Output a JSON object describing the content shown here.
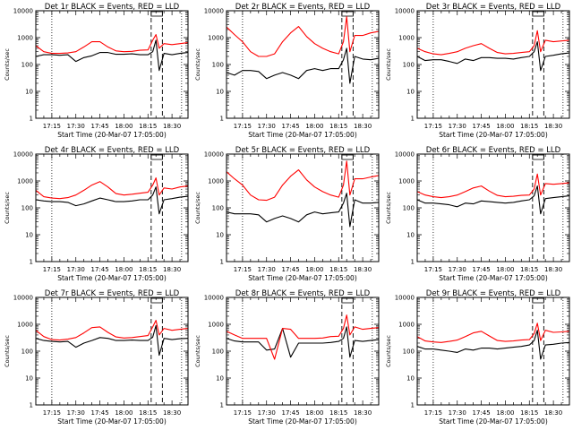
{
  "figure": {
    "common": {
      "xlabel": "Start Time (20-Mar-07 17:05:00)",
      "ylabel": "Counts/sec",
      "x_tick_labels": [
        "17:15",
        "17:30",
        "17:45",
        "18:00",
        "18:15",
        "18:30"
      ],
      "y_tick_labels": [
        "1",
        "10",
        "100",
        "1000",
        "10000"
      ]
    }
  },
  "chart_data": [
    {
      "type": "line",
      "title": "Det 1r BLACK = Events, RED = LLD",
      "xlabel": "Start Time (20-Mar-07 17:05:00)",
      "ylabel": "Counts/sec",
      "yscale": "log",
      "xlim": [
        "17:05",
        "18:40"
      ],
      "ylim": [
        1,
        10000
      ],
      "x_ticks": [
        "17:15",
        "17:30",
        "17:45",
        "18:00",
        "18:15",
        "18:30"
      ],
      "y_ticks": [
        1,
        10,
        100,
        1000,
        10000
      ],
      "x": [
        "17:05",
        "17:10",
        "17:15",
        "17:20",
        "17:25",
        "17:30",
        "17:35",
        "17:40",
        "17:45",
        "17:50",
        "17:55",
        "18:00",
        "18:05",
        "18:10",
        "18:15",
        "18:18",
        "18:20",
        "18:22",
        "18:25",
        "18:30",
        "18:35",
        "18:40"
      ],
      "series": [
        {
          "name": "BLACK = Events",
          "color": "#000000",
          "values": [
            200,
            230,
            230,
            220,
            230,
            130,
            180,
            210,
            280,
            280,
            240,
            240,
            250,
            230,
            230,
            300,
            800,
            60,
            260,
            230,
            260,
            280
          ]
        },
        {
          "name": "RED = LLD",
          "color": "#ff0000",
          "values": [
            500,
            300,
            260,
            260,
            270,
            300,
            450,
            700,
            700,
            450,
            320,
            300,
            310,
            340,
            350,
            800,
            1300,
            400,
            600,
            550,
            600,
            650
          ]
        }
      ]
    },
    {
      "type": "line",
      "title": "Det 2r BLACK = Events, RED = LLD",
      "xlabel": "Start Time (20-Mar-07 17:05:00)",
      "ylabel": "Counts/sec",
      "yscale": "log",
      "xlim": [
        "17:05",
        "18:40"
      ],
      "ylim": [
        1,
        10000
      ],
      "x_ticks": [
        "17:15",
        "17:30",
        "17:45",
        "18:00",
        "18:15",
        "18:30"
      ],
      "y_ticks": [
        1,
        10,
        100,
        1000,
        10000
      ],
      "x": [
        "17:05",
        "17:10",
        "17:15",
        "17:20",
        "17:25",
        "17:30",
        "17:35",
        "17:40",
        "17:45",
        "17:50",
        "17:55",
        "18:00",
        "18:05",
        "18:10",
        "18:15",
        "18:18",
        "18:20",
        "18:22",
        "18:25",
        "18:30",
        "18:35",
        "18:40"
      ],
      "series": [
        {
          "name": "BLACK = Events",
          "color": "#000000",
          "values": [
            50,
            40,
            60,
            60,
            55,
            30,
            40,
            50,
            40,
            30,
            60,
            70,
            60,
            70,
            70,
            150,
            400,
            20,
            200,
            160,
            150,
            170
          ]
        },
        {
          "name": "RED = LLD",
          "color": "#ff0000",
          "values": [
            2500,
            1300,
            700,
            300,
            200,
            200,
            250,
            700,
            1500,
            2600,
            1100,
            600,
            400,
            300,
            250,
            700,
            6000,
            300,
            1200,
            1200,
            1500,
            1700
          ]
        }
      ]
    },
    {
      "type": "line",
      "title": "Det 3r BLACK = Events, RED = LLD",
      "xlabel": "Start Time (20-Mar-07 17:05:00)",
      "ylabel": "Counts/sec",
      "yscale": "log",
      "xlim": [
        "17:05",
        "18:40"
      ],
      "ylim": [
        1,
        10000
      ],
      "x_ticks": [
        "17:15",
        "17:30",
        "17:45",
        "18:00",
        "18:15",
        "18:30"
      ],
      "y_ticks": [
        1,
        10,
        100,
        1000,
        10000
      ],
      "x": [
        "17:05",
        "17:10",
        "17:15",
        "17:20",
        "17:25",
        "17:30",
        "17:35",
        "17:40",
        "17:45",
        "17:50",
        "17:55",
        "18:00",
        "18:05",
        "18:10",
        "18:15",
        "18:18",
        "18:20",
        "18:22",
        "18:25",
        "18:30",
        "18:35",
        "18:40"
      ],
      "series": [
        {
          "name": "BLACK = Events",
          "color": "#000000",
          "values": [
            200,
            140,
            150,
            150,
            130,
            110,
            160,
            140,
            180,
            180,
            170,
            170,
            160,
            180,
            200,
            300,
            700,
            60,
            200,
            220,
            250,
            270
          ]
        },
        {
          "name": "RED = LLD",
          "color": "#ff0000",
          "values": [
            400,
            300,
            250,
            230,
            260,
            300,
            400,
            500,
            600,
            400,
            280,
            250,
            260,
            280,
            300,
            500,
            1800,
            300,
            800,
            700,
            750,
            800
          ]
        }
      ]
    },
    {
      "type": "line",
      "title": "Det 4r BLACK = Events, RED = LLD",
      "xlabel": "Start Time (20-Mar-07 17:05:00)",
      "ylabel": "Counts/sec",
      "yscale": "log",
      "xlim": [
        "17:05",
        "18:40"
      ],
      "ylim": [
        1,
        10000
      ],
      "x_ticks": [
        "17:15",
        "17:30",
        "17:45",
        "18:00",
        "18:15",
        "18:30"
      ],
      "y_ticks": [
        1,
        10,
        100,
        1000,
        10000
      ],
      "x": [
        "17:05",
        "17:10",
        "17:15",
        "17:20",
        "17:25",
        "17:30",
        "17:35",
        "17:40",
        "17:45",
        "17:50",
        "17:55",
        "18:00",
        "18:05",
        "18:10",
        "18:15",
        "18:18",
        "18:20",
        "18:22",
        "18:25",
        "18:30",
        "18:35",
        "18:40"
      ],
      "series": [
        {
          "name": "BLACK = Events",
          "color": "#000000",
          "values": [
            200,
            180,
            170,
            170,
            160,
            120,
            140,
            180,
            230,
            200,
            170,
            170,
            180,
            200,
            200,
            300,
            600,
            60,
            200,
            220,
            250,
            270
          ]
        },
        {
          "name": "RED = LLD",
          "color": "#ff0000",
          "values": [
            450,
            260,
            230,
            220,
            240,
            300,
            450,
            700,
            950,
            600,
            340,
            300,
            320,
            350,
            380,
            700,
            1300,
            300,
            550,
            500,
            600,
            650
          ]
        }
      ]
    },
    {
      "type": "line",
      "title": "Det 5r BLACK = Events, RED = LLD",
      "xlabel": "Start Time (20-Mar-07 17:05:00)",
      "ylabel": "Counts/sec",
      "yscale": "log",
      "xlim": [
        "17:05",
        "18:40"
      ],
      "ylim": [
        1,
        10000
      ],
      "x_ticks": [
        "17:15",
        "17:30",
        "17:45",
        "18:00",
        "18:15",
        "18:30"
      ],
      "y_ticks": [
        1,
        10,
        100,
        1000,
        10000
      ],
      "x": [
        "17:05",
        "17:10",
        "17:15",
        "17:20",
        "17:25",
        "17:30",
        "17:35",
        "17:40",
        "17:45",
        "17:50",
        "17:55",
        "18:00",
        "18:05",
        "18:10",
        "18:15",
        "18:18",
        "18:20",
        "18:22",
        "18:25",
        "18:30",
        "18:35",
        "18:40"
      ],
      "series": [
        {
          "name": "BLACK = Events",
          "color": "#000000",
          "values": [
            70,
            60,
            60,
            60,
            55,
            30,
            40,
            50,
            40,
            30,
            55,
            70,
            60,
            65,
            70,
            150,
            350,
            20,
            200,
            150,
            150,
            160
          ]
        },
        {
          "name": "RED = LLD",
          "color": "#ff0000",
          "values": [
            2200,
            1200,
            700,
            300,
            200,
            190,
            250,
            700,
            1500,
            2600,
            1100,
            600,
            400,
            300,
            250,
            700,
            5500,
            300,
            1200,
            1200,
            1400,
            1600
          ]
        }
      ]
    },
    {
      "type": "line",
      "title": "Det 6r BLACK = Events, RED = LLD",
      "xlabel": "Start Time (20-Mar-07 17:05:00)",
      "ylabel": "Counts/sec",
      "yscale": "log",
      "xlim": [
        "17:05",
        "18:40"
      ],
      "ylim": [
        1,
        10000
      ],
      "x_ticks": [
        "17:15",
        "17:30",
        "17:45",
        "18:00",
        "18:15",
        "18:30"
      ],
      "y_ticks": [
        1,
        10,
        100,
        1000,
        10000
      ],
      "x": [
        "17:05",
        "17:10",
        "17:15",
        "17:20",
        "17:25",
        "17:30",
        "17:35",
        "17:40",
        "17:45",
        "17:50",
        "17:55",
        "18:00",
        "18:05",
        "18:10",
        "18:15",
        "18:18",
        "18:20",
        "18:22",
        "18:25",
        "18:30",
        "18:35",
        "18:40"
      ],
      "series": [
        {
          "name": "BLACK = Events",
          "color": "#000000",
          "values": [
            200,
            150,
            150,
            140,
            130,
            110,
            150,
            140,
            180,
            170,
            160,
            150,
            160,
            180,
            200,
            280,
            650,
            60,
            220,
            240,
            260,
            280
          ]
        },
        {
          "name": "RED = LLD",
          "color": "#ff0000",
          "values": [
            400,
            300,
            260,
            240,
            260,
            300,
            400,
            550,
            650,
            420,
            290,
            260,
            270,
            290,
            300,
            500,
            1800,
            300,
            800,
            750,
            800,
            850
          ]
        }
      ]
    },
    {
      "type": "line",
      "title": "Det 7r BLACK = Events, RED = LLD",
      "xlabel": "Start Time (20-Mar-07 17:05:00)",
      "ylabel": "Counts/sec",
      "yscale": "log",
      "xlim": [
        "17:05",
        "18:40"
      ],
      "ylim": [
        1,
        10000
      ],
      "x_ticks": [
        "17:15",
        "17:30",
        "17:45",
        "18:00",
        "18:15",
        "18:30"
      ],
      "y_ticks": [
        1,
        10,
        100,
        1000,
        10000
      ],
      "x": [
        "17:05",
        "17:10",
        "17:15",
        "17:20",
        "17:25",
        "17:30",
        "17:35",
        "17:40",
        "17:45",
        "17:50",
        "17:55",
        "18:00",
        "18:05",
        "18:10",
        "18:15",
        "18:18",
        "18:20",
        "18:22",
        "18:25",
        "18:30",
        "18:35",
        "18:40"
      ],
      "series": [
        {
          "name": "BLACK = Events",
          "color": "#000000",
          "values": [
            300,
            250,
            230,
            220,
            230,
            140,
            200,
            250,
            320,
            300,
            250,
            250,
            260,
            250,
            250,
            330,
            900,
            70,
            300,
            270,
            290,
            300
          ]
        },
        {
          "name": "RED = LLD",
          "color": "#ff0000",
          "values": [
            600,
            350,
            270,
            260,
            280,
            320,
            480,
            750,
            800,
            500,
            340,
            310,
            320,
            350,
            380,
            800,
            1400,
            400,
            700,
            600,
            650,
            700
          ]
        }
      ]
    },
    {
      "type": "line",
      "title": "Det 8r BLACK = Events, RED = LLD",
      "xlabel": "Start Time (20-Mar-07 17:05:00)",
      "ylabel": "Counts/sec",
      "yscale": "log",
      "xlim": [
        "17:05",
        "18:40"
      ],
      "ylim": [
        1,
        10000
      ],
      "x_ticks": [
        "17:15",
        "17:30",
        "17:45",
        "18:00",
        "18:15",
        "18:30"
      ],
      "y_ticks": [
        1,
        10,
        100,
        1000,
        10000
      ],
      "x": [
        "17:05",
        "17:10",
        "17:15",
        "17:20",
        "17:25",
        "17:30",
        "17:35",
        "17:40",
        "17:45",
        "17:50",
        "17:55",
        "18:00",
        "18:05",
        "18:10",
        "18:15",
        "18:18",
        "18:20",
        "18:22",
        "18:25",
        "18:30",
        "18:35",
        "18:40"
      ],
      "series": [
        {
          "name": "BLACK = Events",
          "color": "#000000",
          "values": [
            300,
            240,
            220,
            220,
            220,
            110,
            120,
            700,
            60,
            200,
            200,
            200,
            200,
            210,
            230,
            300,
            800,
            60,
            250,
            230,
            250,
            270
          ]
        },
        {
          "name": "RED = LLD",
          "color": "#ff0000",
          "values": [
            550,
            400,
            300,
            300,
            300,
            300,
            50,
            700,
            650,
            300,
            300,
            300,
            310,
            350,
            360,
            700,
            2200,
            400,
            800,
            650,
            700,
            750
          ]
        }
      ]
    },
    {
      "type": "line",
      "title": "Det 9r BLACK = Events, RED = LLD",
      "xlabel": "Start Time (20-Mar-07 17:05:00)",
      "ylabel": "Counts/sec",
      "yscale": "log",
      "xlim": [
        "17:05",
        "18:40"
      ],
      "ylim": [
        1,
        10000
      ],
      "x_ticks": [
        "17:15",
        "17:30",
        "17:45",
        "18:00",
        "18:15",
        "18:30"
      ],
      "y_ticks": [
        1,
        10,
        100,
        1000,
        10000
      ],
      "x": [
        "17:05",
        "17:10",
        "17:15",
        "17:20",
        "17:25",
        "17:30",
        "17:35",
        "17:40",
        "17:45",
        "17:50",
        "17:55",
        "18:00",
        "18:05",
        "18:10",
        "18:15",
        "18:18",
        "18:20",
        "18:22",
        "18:25",
        "18:30",
        "18:35",
        "18:40"
      ],
      "series": [
        {
          "name": "BLACK = Events",
          "color": "#000000",
          "values": [
            150,
            120,
            120,
            110,
            100,
            90,
            120,
            110,
            130,
            130,
            120,
            130,
            140,
            150,
            170,
            250,
            600,
            50,
            170,
            180,
            200,
            210
          ]
        },
        {
          "name": "RED = LLD",
          "color": "#ff0000",
          "values": [
            350,
            240,
            220,
            210,
            230,
            260,
            350,
            480,
            550,
            370,
            250,
            230,
            240,
            260,
            270,
            450,
            1100,
            250,
            600,
            500,
            520,
            550
          ]
        }
      ]
    }
  ]
}
